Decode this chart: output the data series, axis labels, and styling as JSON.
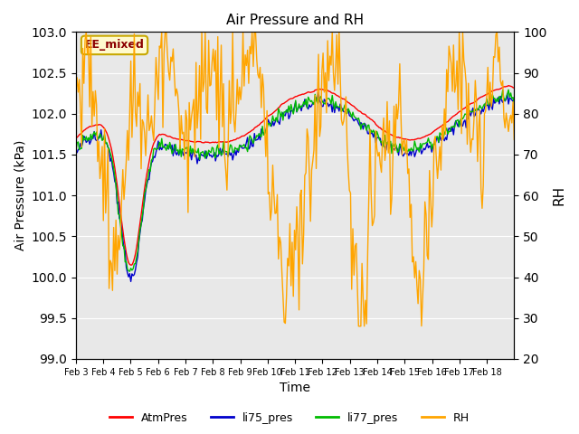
{
  "title": "Air Pressure and RH",
  "xlabel": "Time",
  "ylabel_left": "Air Pressure (kPa)",
  "ylabel_right": "RH",
  "ylim_left": [
    99.0,
    103.0
  ],
  "ylim_right": [
    20,
    100
  ],
  "yticks_left": [
    99.0,
    99.5,
    100.0,
    100.5,
    101.0,
    101.5,
    102.0,
    102.5,
    103.0
  ],
  "yticks_right": [
    20,
    30,
    40,
    50,
    60,
    70,
    80,
    90,
    100
  ],
  "xtick_labels": [
    "Feb 3",
    "Feb 4",
    "Feb 5",
    "Feb 6",
    "Feb 7",
    "Feb 8",
    "Feb 9",
    "Feb 10",
    "Feb 11",
    "Feb 12",
    "Feb 13",
    "Feb 14",
    "Feb 15",
    "Feb 16",
    "Feb 17",
    "Feb 18"
  ],
  "annotation_text": "EE_mixed",
  "annotation_color": "#8B0000",
  "annotation_bg": "#FFFACD",
  "annotation_border": "#C8A800",
  "line_colors": {
    "AtmPres": "#FF0000",
    "li75_pres": "#0000CC",
    "li77_pres": "#00BB00",
    "RH": "#FFA500"
  },
  "legend_labels": [
    "AtmPres",
    "li75_pres",
    "li77_pres",
    "RH"
  ],
  "bg_color": "#E8E8E8",
  "grid_color": "#FFFFFF",
  "n_days": 16,
  "seed": 42
}
